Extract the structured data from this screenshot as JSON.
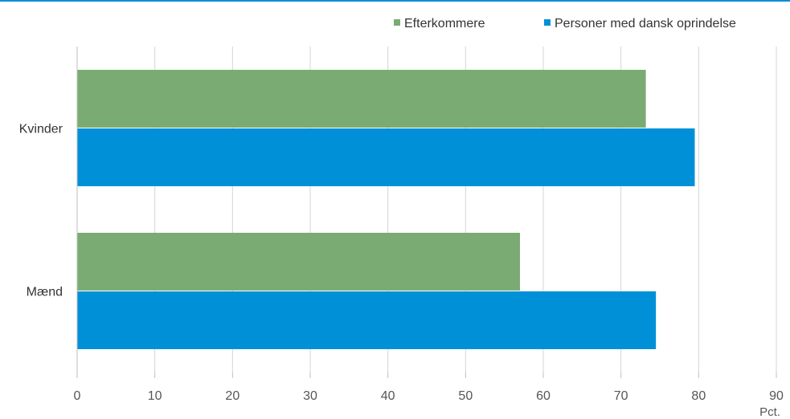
{
  "chart_data": {
    "type": "bar",
    "orientation": "horizontal",
    "categories": [
      "Kvinder",
      "Mænd"
    ],
    "series": [
      {
        "name": "Efterkommere",
        "values": [
          73.2,
          57.0
        ],
        "color": "#7aab72"
      },
      {
        "name": "Personer med dansk oprindelse",
        "values": [
          79.5,
          74.5
        ],
        "color": "#0090d8"
      }
    ],
    "xlim": [
      0,
      90
    ],
    "xticks": [
      0,
      10,
      20,
      30,
      40,
      50,
      60,
      70,
      80,
      90
    ],
    "xunit": "Pct.",
    "grid": true,
    "legend": "top-right",
    "accent_color": "#0d8ed9"
  }
}
